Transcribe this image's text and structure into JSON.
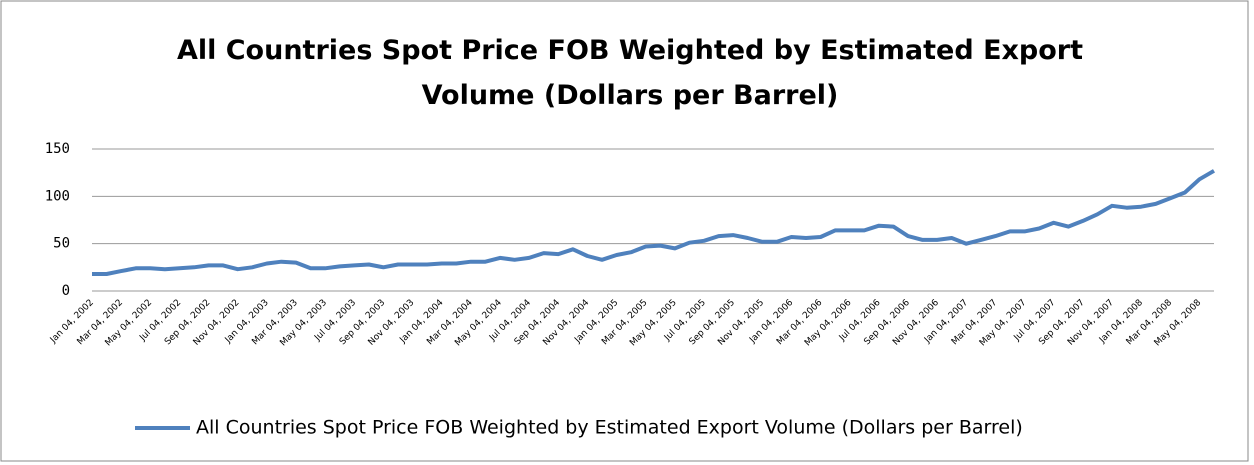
{
  "chart_data": {
    "type": "line",
    "title": "All Countries Spot Price FOB Weighted by Estimated Export Volume (Dollars per Barrel)",
    "categories": [
      "Jan 04, 2002",
      null,
      "Mar 04, 2002",
      null,
      "May 04, 2002",
      null,
      "Jul 04, 2002",
      null,
      "Sep 04, 2002",
      null,
      "Nov 04, 2002",
      null,
      "Jan 04, 2003",
      null,
      "Mar 04, 2003",
      null,
      "May 04, 2003",
      null,
      "Jul 04, 2003",
      null,
      "Sep 04, 2003",
      null,
      "Nov 04, 2003",
      null,
      "Jan 04, 2004",
      null,
      "Mar 04, 2004",
      null,
      "May 04, 2004",
      null,
      "Jul 04, 2004",
      null,
      "Sep 04, 2004",
      null,
      "Nov 04, 2004",
      null,
      "Jan 04, 2005",
      null,
      "Mar 04, 2005",
      null,
      "May 04, 2005",
      null,
      "Jul 04, 2005",
      null,
      "Sep 04, 2005",
      null,
      "Nov 04, 2005",
      null,
      "Jan 04, 2006",
      null,
      "Mar 04, 2006",
      null,
      "May 04, 2006",
      null,
      "Jul 04, 2006",
      null,
      "Sep 04, 2006",
      null,
      "Nov 04, 2006",
      null,
      "Jan 04, 2007",
      null,
      "Mar 04, 2007",
      null,
      "May 04, 2007",
      null,
      "Jul 04, 2007",
      null,
      "Sep 04, 2007",
      null,
      "Nov 04, 2007",
      null,
      "Jan 04, 2008",
      null,
      "Mar 04, 2008",
      null,
      "May 04, 2008",
      null
    ],
    "series": [
      {
        "name": "All Countries Spot Price FOB Weighted by Estimated Export Volume (Dollars per Barrel)",
        "color": "#4f81bd",
        "values": [
          18,
          18,
          21,
          24,
          24,
          23,
          24,
          25,
          27,
          27,
          23,
          25,
          29,
          31,
          30,
          24,
          24,
          26,
          27,
          28,
          25,
          28,
          28,
          28,
          29,
          29,
          31,
          31,
          35,
          33,
          35,
          40,
          39,
          44,
          37,
          33,
          38,
          41,
          47,
          48,
          45,
          51,
          53,
          58,
          59,
          56,
          52,
          52,
          57,
          56,
          57,
          64,
          64,
          64,
          69,
          68,
          58,
          54,
          54,
          56,
          50,
          54,
          58,
          63,
          63,
          66,
          72,
          68,
          74,
          81,
          90,
          88,
          89,
          92,
          98,
          104,
          118,
          127
        ]
      }
    ],
    "ylim": [
      0,
      150
    ],
    "yticks": [
      0,
      50,
      100,
      150
    ],
    "grid": true,
    "legend": "bottom"
  }
}
